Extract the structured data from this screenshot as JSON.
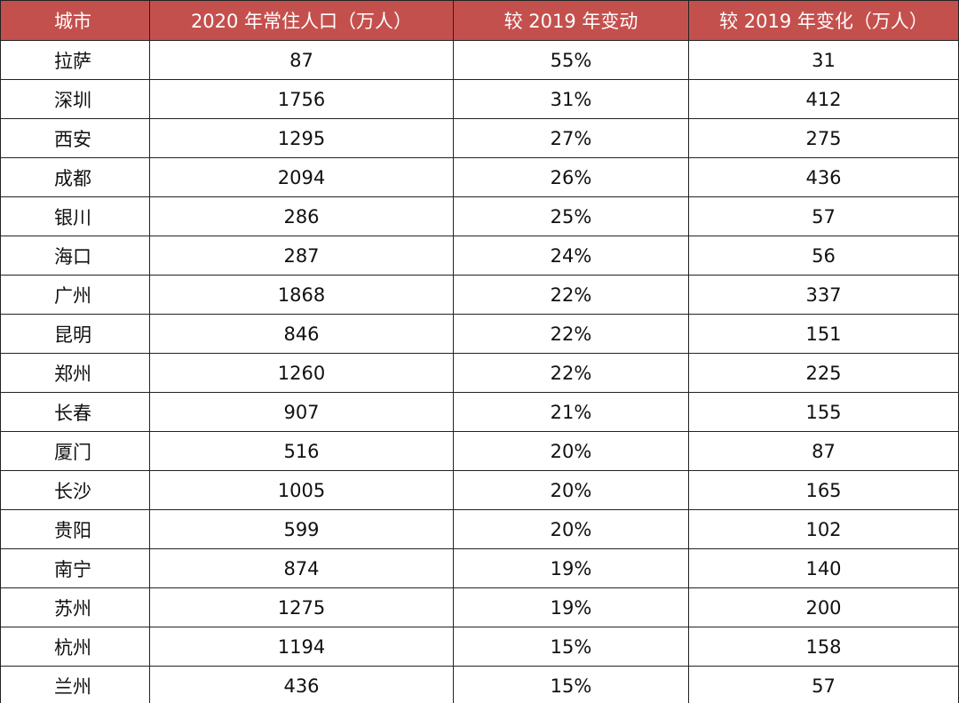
{
  "table": {
    "header": [
      "城市",
      "2020 年常住人口（万人）",
      "较 2019 年变动",
      "较 2019 年变化（万人）"
    ],
    "rows": [
      [
        "拉萨",
        87,
        "55%",
        31
      ],
      [
        "深圳",
        1756,
        "31%",
        412
      ],
      [
        "西安",
        1295,
        "27%",
        275
      ],
      [
        "成都",
        2094,
        "26%",
        436
      ],
      [
        "银川",
        286,
        "25%",
        57
      ],
      [
        "海口",
        287,
        "24%",
        56
      ],
      [
        "广州",
        1868,
        "22%",
        337
      ],
      [
        "昆明",
        846,
        "22%",
        151
      ],
      [
        "郑州",
        1260,
        "22%",
        225
      ],
      [
        "长春",
        907,
        "21%",
        155
      ],
      [
        "厦门",
        516,
        "20%",
        87
      ],
      [
        "长沙",
        1005,
        "20%",
        165
      ],
      [
        "贵阳",
        599,
        "20%",
        102
      ],
      [
        "南宁",
        874,
        "19%",
        140
      ],
      [
        "苏州",
        1275,
        "19%",
        200
      ],
      [
        "杭州",
        1194,
        "15%",
        158
      ],
      [
        "兰州",
        436,
        "15%",
        57
      ]
    ]
  }
}
